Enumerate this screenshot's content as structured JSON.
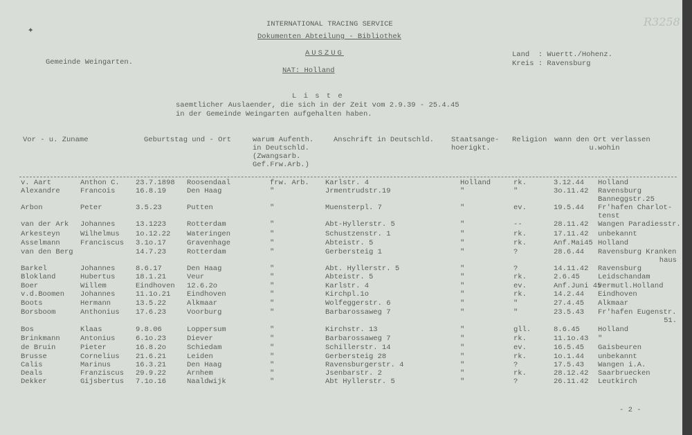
{
  "header": {
    "org": "INTERNATIONAL TRACING SERVICE",
    "dept": "Dokumenten Abteilung - Bibliothek",
    "doc_type": "AUSZUG",
    "nationality": "NAT: Holland",
    "gemeinde": "Gemeinde Weingarten.",
    "land": "Land  : Wuertt./Hohenz.",
    "kreis": "Kreis : Ravensburg",
    "archive_mark": "R3258"
  },
  "intro": {
    "title": "L i s t e",
    "line1": "saemtlicher Auslaender, die sich in der Zeit vom 2.9.39 - 25.4.45",
    "line2": "in der Gemeinde Weingarten aufgehalten haben."
  },
  "columns": {
    "name": "Vor - u. Zuname",
    "birth": "Geburtstag und - Ort",
    "reason": "warum Aufenth.\nin Deutschld.\n(Zwangsarb.\nGef.Frw.Arb.)",
    "address": "Anschrift in Deutschld.",
    "nation": "Staatsange-\nhoerigkt.",
    "religion": "Religion",
    "left": "wann den Ort verlassen\n        u.wohin"
  },
  "rows": [
    {
      "surname": "v. Aart",
      "first": "Anthon C.",
      "date": "23.7.1898",
      "place": "Roosendaal",
      "reason": "frw. Arb.",
      "address": "Karlstr. 4",
      "nation": "Holland",
      "religion": "rk.",
      "left": "3.12.44",
      "dest": "Holland"
    },
    {
      "surname": "Alexandre",
      "first": "Francois",
      "date": "16.8.19",
      "place": "Den Haag",
      "reason": "\"",
      "address": "Jrmentrudstr.19",
      "nation": "\"",
      "religion": "\"",
      "left": "3o.11.42",
      "dest": "Ravensburg",
      "dest2": "Banneggstr.25"
    },
    {
      "surname": "Arbon",
      "first": "Peter",
      "date": "3.5.23",
      "place": "Putten",
      "reason": "\"",
      "address": "Muensterpl. 7",
      "nation": "\"",
      "religion": "ev.",
      "left": "19.5.44",
      "dest": "Fr'hafen Charlot-",
      "dest2": "tenst"
    },
    {
      "surname": "van der Ark",
      "first": "Johannes",
      "date": "13.1223",
      "place": "Rotterdam",
      "reason": "\"",
      "address": "Abt-Hyllerstr. 5",
      "nation": "\"",
      "religion": "--",
      "left": "28.11.42",
      "dest": "Wangen Paradiesstr."
    },
    {
      "surname": "Arkesteyn",
      "first": "Wilhelmus",
      "date": "1o.12.22",
      "place": "Wateringen",
      "reason": "\"",
      "address": "Schustzenstr. 1",
      "nation": "\"",
      "religion": "rk.",
      "left": "17.11.42",
      "dest": "unbekannt"
    },
    {
      "surname": "Asselmann",
      "first": "Franciscus",
      "date": "3.1o.17",
      "place": "Gravenhage",
      "reason": "\"",
      "address": "Abteistr. 5",
      "nation": "\"",
      "religion": "rk.",
      "left": "Anf.Mai45",
      "dest": "Holland"
    },
    {
      "surname": "van den Berg",
      "first": "",
      "date": "14.7.23",
      "place": "Rotterdam",
      "reason": "\"",
      "address": "Gerbersteig 1",
      "nation": "\"",
      "religion": "?",
      "left": "28.6.44",
      "dest": "Ravensburg Kranken",
      "dest2": "haus",
      "dest2_right": true
    },
    {
      "surname": "Barkel",
      "first": "Johannes",
      "date": "8.6.17",
      "place": "Den Haag",
      "reason": "\"",
      "address": "Abt. Hyllerstr. 5",
      "nation": "\"",
      "religion": "?",
      "left": "14.11.42",
      "dest": "Ravensburg"
    },
    {
      "surname": "Blokland",
      "first": "Hubertus",
      "date": "18.1.21",
      "place": "Veur",
      "reason": "\"",
      "address": "Abteistr. 5",
      "nation": "\"",
      "religion": "rk.",
      "left": "2.6.45",
      "dest": "Leidschandam"
    },
    {
      "surname": "Boer",
      "first": "Willem",
      "date": "Eindhoven",
      "place": "12.6.2o",
      "reason": "\"",
      "address": "Karlstr. 4",
      "nation": "\"",
      "religion": "ev.",
      "left": "Anf.Juni 45",
      "dest": "vermutl.Holland"
    },
    {
      "surname": "v.d.Boomen",
      "first": "Johannes",
      "date": "11.1o.21",
      "place": "Eindhoven",
      "reason": "\"",
      "address": "Kirchpl.1o",
      "nation": "\"",
      "religion": "rk.",
      "left": "14.2.44",
      "dest": "Eindhoven"
    },
    {
      "surname": "Boots",
      "first": "Hermann",
      "date": "13.5.22",
      "place": "Alkmaar",
      "reason": "\"",
      "address": "Wolfeggerstr. 6",
      "nation": "\"",
      "religion": "\"",
      "left": "27.4.45",
      "dest": "Alkmaar"
    },
    {
      "surname": "Borsboom",
      "first": "Anthonius",
      "date": "17.6.23",
      "place": "Voorburg",
      "reason": "\"",
      "address": "Barbarossaweg 7",
      "nation": "\"",
      "religion": "\"",
      "left": "23.5.43",
      "dest": "Fr'hafen Eugenstr.",
      "dest2": "51.",
      "dest2_right": true
    },
    {
      "surname": "Bos",
      "first": "Klaas",
      "date": "9.8.06",
      "place": "Loppersum",
      "reason": "\"",
      "address": "Kirchstr. 13",
      "nation": "\"",
      "religion": "gll.",
      "left": "8.6.45",
      "dest": "Holland"
    },
    {
      "surname": "Brinkmann",
      "first": "Antonius",
      "date": "6.1o.23",
      "place": "Diever",
      "reason": "\"",
      "address": "Barbarossaweg 7",
      "nation": "\"",
      "religion": "rk.",
      "left": "11.1o.43",
      "dest": "\""
    },
    {
      "surname": "de Bruin",
      "first": "Pieter",
      "date": "16.8.2o",
      "place": "Schiedam",
      "reason": "\"",
      "address": "Schillerstr. 14",
      "nation": "\"",
      "religion": "ev.",
      "left": "16.5.45",
      "dest": "Gaisbeuren"
    },
    {
      "surname": "Brusse",
      "first": "Cornelius",
      "date": "21.6.21",
      "place": "Leiden",
      "reason": "\"",
      "address": "Gerbersteig 28",
      "nation": "\"",
      "religion": "rk.",
      "left": "1o.1.44",
      "dest": "unbekannt"
    },
    {
      "surname": "Calis",
      "first": "Marinus",
      "date": "16.3.21",
      "place": "Den Haag",
      "reason": "\"",
      "address": "Ravensburgerstr. 4",
      "nation": "\"",
      "religion": "?",
      "left": "17.5.43",
      "dest": "Wangen i.A."
    },
    {
      "surname": "Deals",
      "first": "Franziscus",
      "date": "29.9.22",
      "place": "Arnhem",
      "reason": "\"",
      "address": "Jsenbarstr. 2",
      "nation": "\"",
      "religion": "rk.",
      "left": "28.12.42",
      "dest": "Saarbruecken"
    },
    {
      "surname": "Dekker",
      "first": "Gijsbertus",
      "date": "7.1o.16",
      "place": "Naaldwijk",
      "reason": "\"",
      "address": "Abt Hyllerstr. 5",
      "nation": "\"",
      "religion": "?",
      "left": "26.11.42",
      "dest": "Leutkirch"
    }
  ],
  "footer": {
    "page": "- 2 -"
  }
}
